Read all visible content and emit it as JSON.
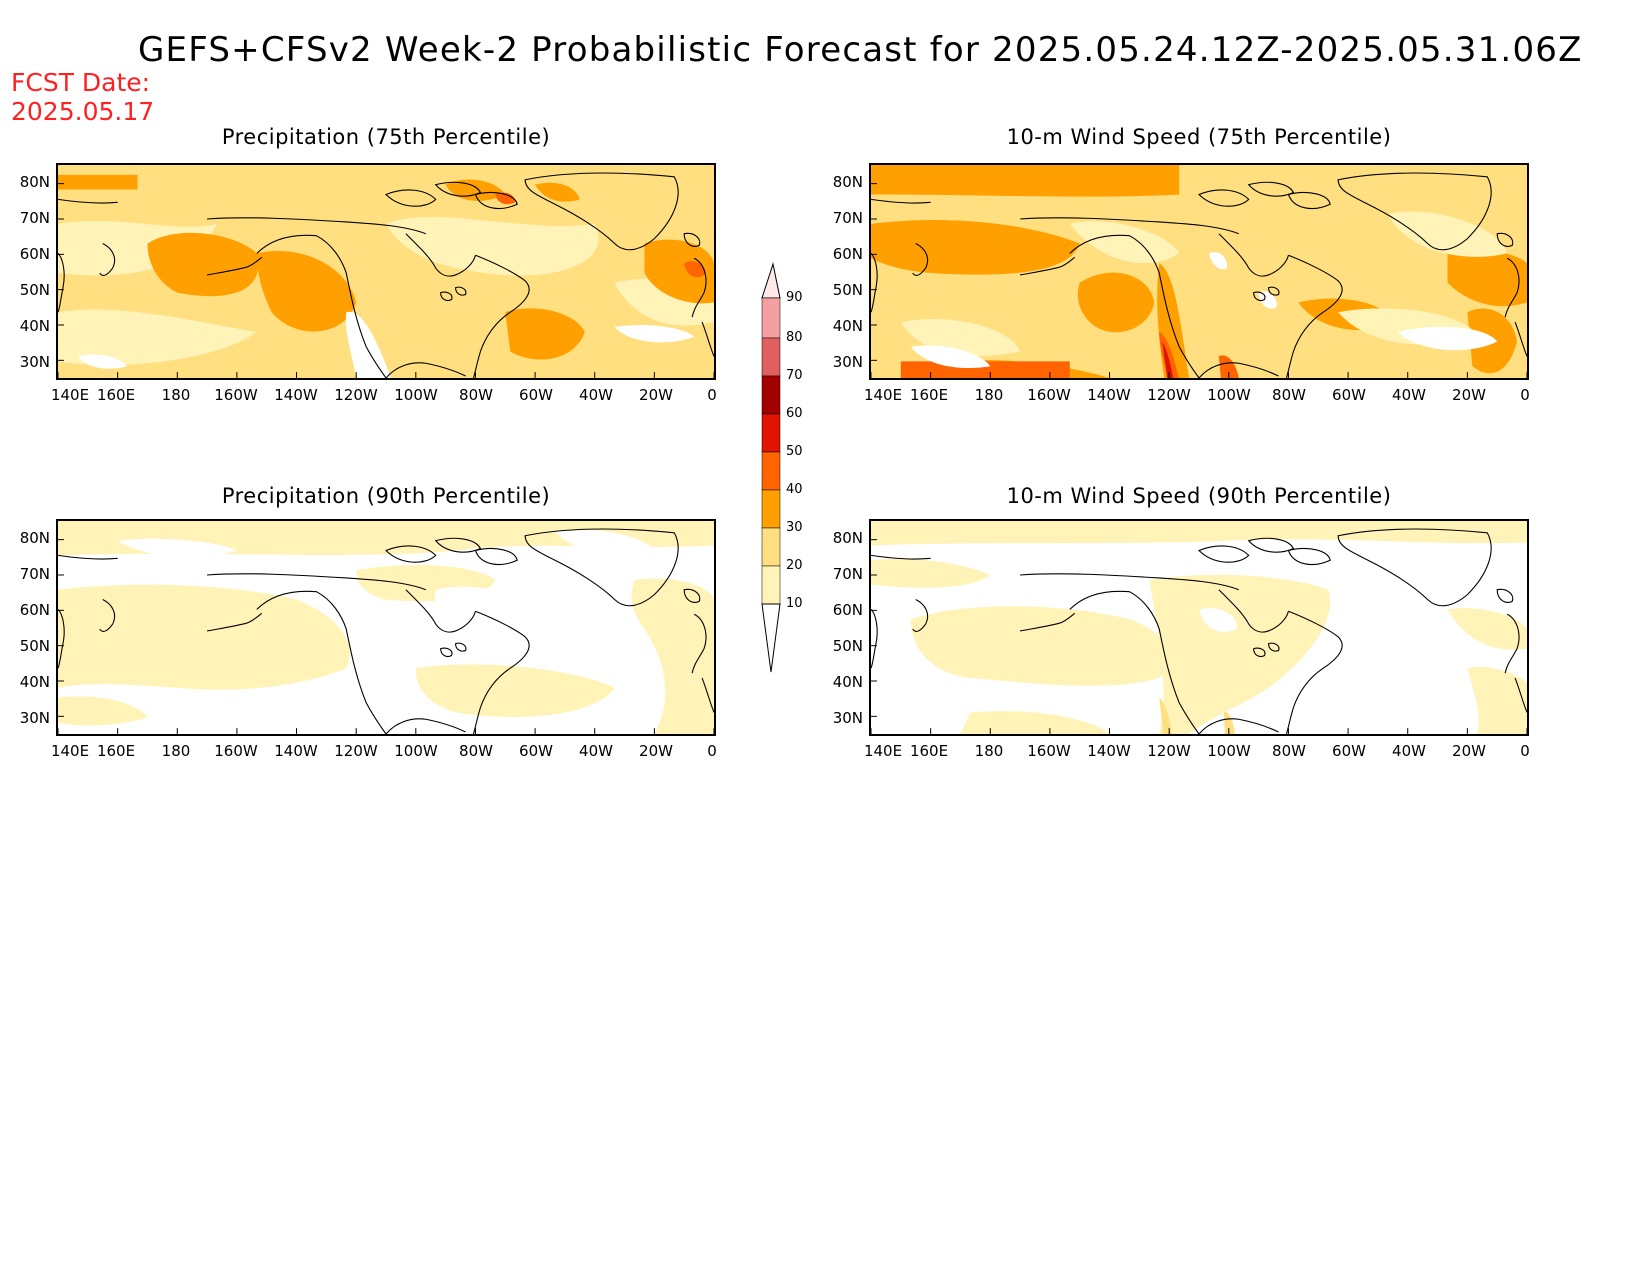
{
  "header": {
    "title": "GEFS+CFSv2 Week-2 Probabilistic Forecast for 2025.05.24.12Z-2025.05.31.06Z",
    "fcst_label": "FCST Date:",
    "fcst_date": "2025.05.17"
  },
  "axes": {
    "lat_labels": [
      "80N",
      "70N",
      "60N",
      "50N",
      "40N",
      "30N"
    ],
    "lon_labels": [
      "140E",
      "160E",
      "180",
      "160W",
      "140W",
      "120W",
      "100W",
      "80W",
      "60W",
      "40W",
      "20W",
      "0"
    ]
  },
  "colors": {
    "10-20": "#fff3b8",
    "20-30": "#ffdf80",
    "30-40": "#ffa000",
    "40-50": "#ff6400",
    "50-60": "#e01400",
    "60-70": "#a50000",
    "70-80": "#e05050",
    "80-90": "#f09090",
    "90+": "#ffd0d0"
  },
  "colorbar": {
    "levels": [
      "90",
      "80",
      "70",
      "60",
      "50",
      "40",
      "30",
      "20",
      "10"
    ]
  },
  "panels": [
    {
      "id": "precip-75",
      "title": "Precipitation (75th Percentile)"
    },
    {
      "id": "wind-75",
      "title": "10-m Wind Speed (75th Percentile)"
    },
    {
      "id": "precip-90",
      "title": "Precipitation (90th Percentile)"
    },
    {
      "id": "wind-90",
      "title": "10-m Wind Speed (90th Percentile)"
    }
  ]
}
